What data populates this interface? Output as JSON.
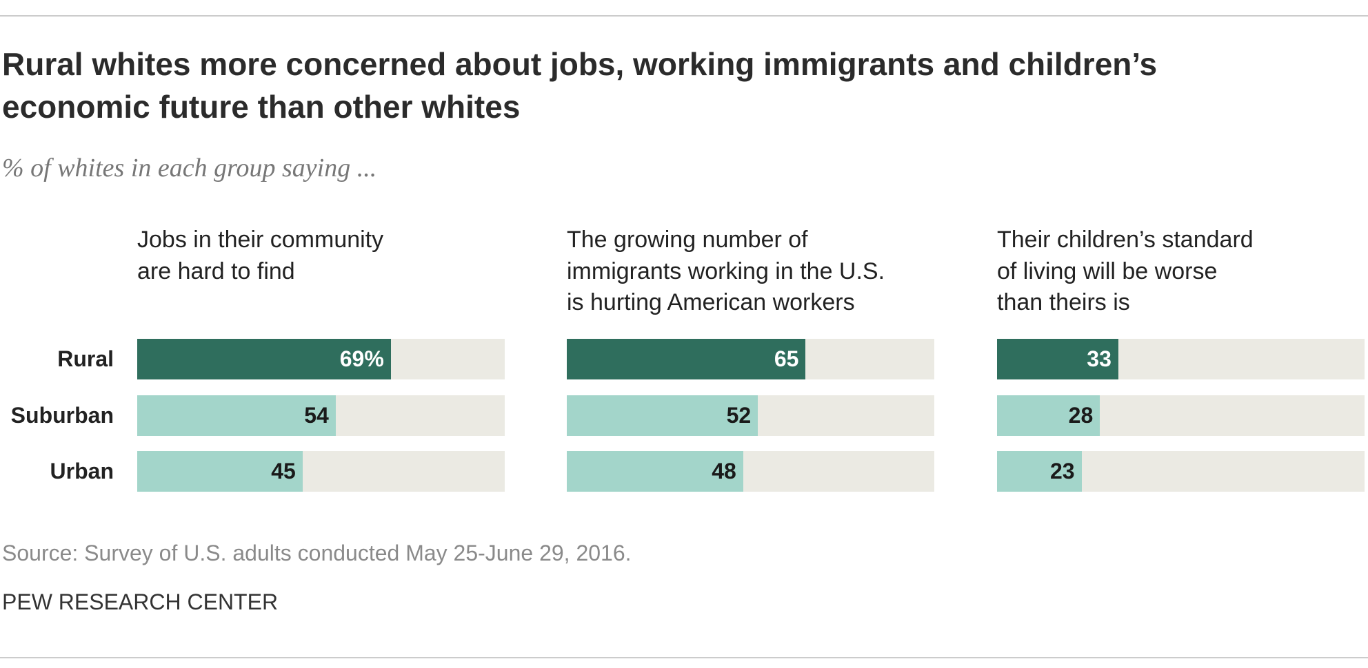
{
  "title": "Rural whites more concerned about jobs, working immigrants and children’s\neconomic future than other whites",
  "subtitle": "% of whites in each group saying ...",
  "categories": [
    "Rural",
    "Suburban",
    "Urban"
  ],
  "colors": [
    "#2f6e5d",
    "#a3d5ca",
    "#a3d5ca"
  ],
  "track_color": "#ebeae3",
  "label_colors": [
    "#ffffff",
    "#1a1a1a",
    "#1a1a1a"
  ],
  "chart_data": [
    {
      "type": "bar",
      "title": "Jobs in their community\nare hard to find",
      "values": [
        69,
        54,
        45
      ],
      "value_labels": [
        "69%",
        "54",
        "45"
      ],
      "xlim": [
        0,
        100
      ]
    },
    {
      "type": "bar",
      "title": "The growing number of\nimmigrants working in the U.S.\nis hurting American workers",
      "values": [
        65,
        52,
        48
      ],
      "xlim": [
        0,
        100
      ]
    },
    {
      "type": "bar",
      "title": "Their children’s standard\nof living will be worse\nthan theirs is",
      "values": [
        33,
        28,
        23
      ],
      "xlim": [
        0,
        100
      ]
    }
  ],
  "source": "Source: Survey of U.S. adults conducted May 25-June 29, 2016.",
  "credit": "PEW RESEARCH CENTER"
}
